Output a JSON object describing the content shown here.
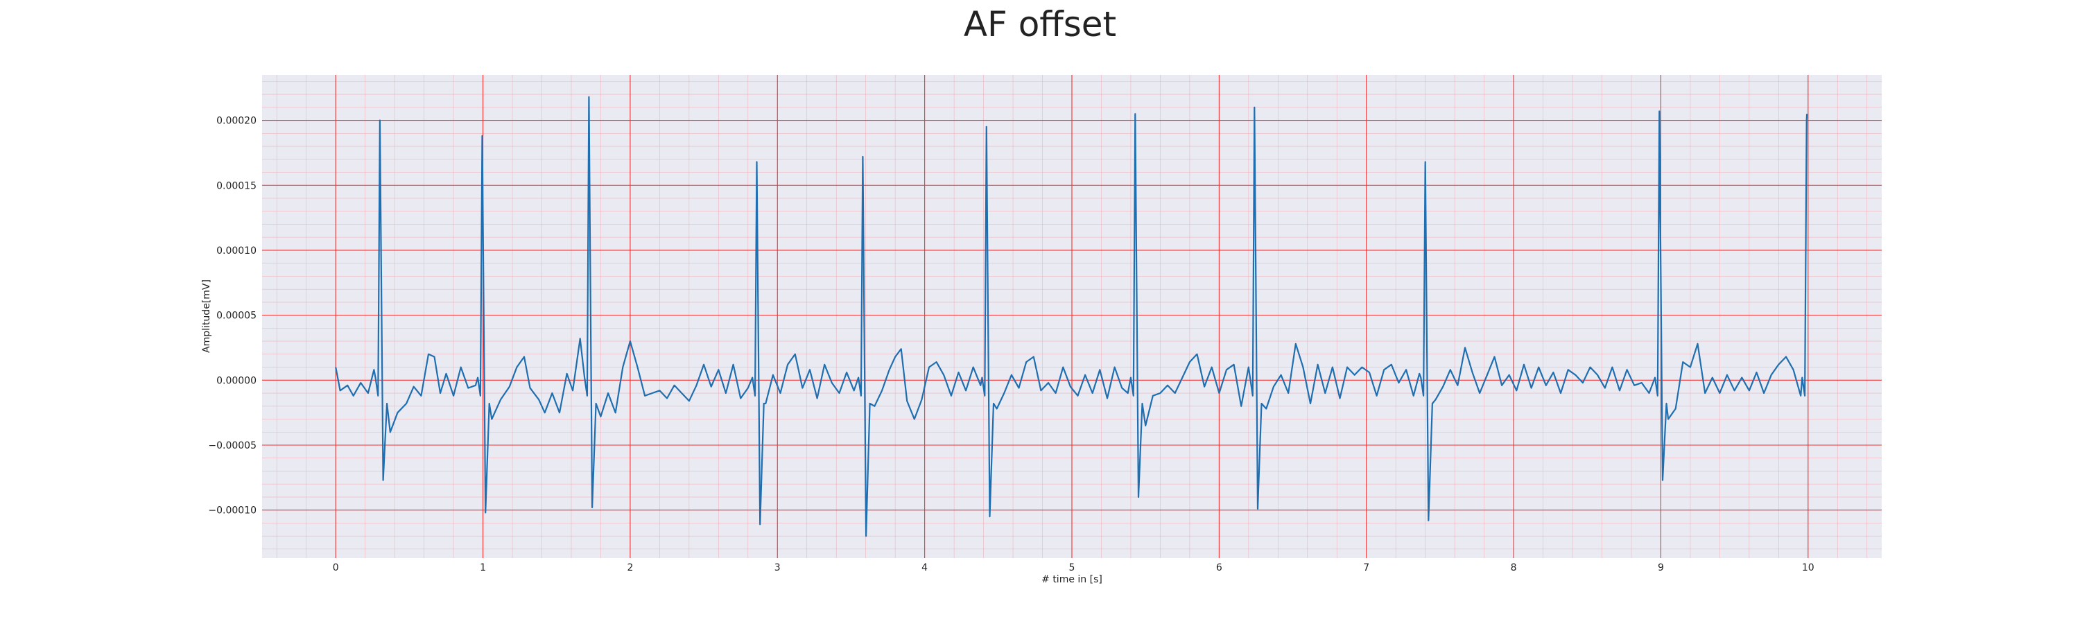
{
  "chart_data": {
    "type": "line",
    "title": "AF offset",
    "xlabel": "# time in [s]",
    "ylabel": "Amplitude[mV]",
    "xlim": [
      -0.5,
      10.5
    ],
    "ylim": [
      -0.000137,
      0.000235
    ],
    "x_ticks": [
      0,
      1,
      2,
      3,
      4,
      5,
      6,
      7,
      8,
      9,
      10
    ],
    "y_ticks": [
      -0.0001,
      -5e-05,
      0.0,
      5e-05,
      0.0001,
      0.00015,
      0.0002
    ],
    "x_tick_labels": [
      "0",
      "1",
      "2",
      "3",
      "4",
      "5",
      "6",
      "7",
      "8",
      "9",
      "10"
    ],
    "y_tick_labels": [
      "−0.00010",
      "−0.00005",
      "0.00000",
      "0.00005",
      "0.00010",
      "0.00015",
      "0.00020"
    ],
    "grid": true,
    "background": "#eaeaf2",
    "major_grid_color": "#ee3333",
    "minor_grid_color": "#f2a0a8",
    "line_color": "#1f6fb0",
    "beats": [
      {
        "t": 0.3,
        "r": 0.0002,
        "s": -7.7e-05
      },
      {
        "t": 0.995,
        "r": 0.000188,
        "s": -0.000102
      },
      {
        "t": 1.72,
        "r": 0.000218,
        "s": -9.8e-05
      },
      {
        "t": 2.86,
        "r": 0.000168,
        "s": -0.000111
      },
      {
        "t": 3.58,
        "r": 0.000172,
        "s": -0.00012
      },
      {
        "t": 4.42,
        "r": 0.000195,
        "s": -0.000105
      },
      {
        "t": 5.43,
        "r": 0.000205,
        "s": -9e-05
      },
      {
        "t": 6.24,
        "r": 0.00021,
        "s": -9.9e-05
      },
      {
        "t": 7.4,
        "r": 0.000168,
        "s": -0.000108
      },
      {
        "t": 8.99,
        "r": 0.000207,
        "s": -7.7e-05
      },
      {
        "t": 9.99,
        "r": 0.0002,
        "s": -3.5e-05
      }
    ],
    "baseline_points": [
      [
        0.0,
        1e-05
      ],
      [
        0.03,
        -8e-06
      ],
      [
        0.08,
        -4e-06
      ],
      [
        0.12,
        -1.2e-05
      ],
      [
        0.17,
        -2e-06
      ],
      [
        0.22,
        -1e-05
      ],
      [
        0.26,
        8e-06
      ],
      [
        0.37,
        -4e-05
      ],
      [
        0.42,
        -2.5e-05
      ],
      [
        0.48,
        -1.8e-05
      ],
      [
        0.53,
        -5e-06
      ],
      [
        0.58,
        -1.2e-05
      ],
      [
        0.63,
        2e-05
      ],
      [
        0.67,
        1.8e-05
      ],
      [
        0.71,
        -1e-05
      ],
      [
        0.75,
        5e-06
      ],
      [
        0.8,
        -1.2e-05
      ],
      [
        0.85,
        1e-05
      ],
      [
        0.9,
        -6e-06
      ],
      [
        0.95,
        -4e-06
      ],
      [
        1.06,
        -3e-05
      ],
      [
        1.12,
        -1.5e-05
      ],
      [
        1.18,
        -5e-06
      ],
      [
        1.23,
        1e-05
      ],
      [
        1.28,
        1.8e-05
      ],
      [
        1.32,
        -6e-06
      ],
      [
        1.38,
        -1.5e-05
      ],
      [
        1.42,
        -2.5e-05
      ],
      [
        1.47,
        -1e-05
      ],
      [
        1.52,
        -2.5e-05
      ],
      [
        1.57,
        5e-06
      ],
      [
        1.61,
        -8e-06
      ],
      [
        1.66,
        3.2e-05
      ],
      [
        1.8,
        -2.8e-05
      ],
      [
        1.85,
        -1e-05
      ],
      [
        1.9,
        -2.5e-05
      ],
      [
        1.95,
        1e-05
      ],
      [
        2.0,
        3e-05
      ],
      [
        2.05,
        1e-05
      ],
      [
        2.1,
        -1.2e-05
      ],
      [
        2.15,
        -1e-05
      ],
      [
        2.2,
        -8e-06
      ],
      [
        2.25,
        -1.4e-05
      ],
      [
        2.3,
        -4e-06
      ],
      [
        2.35,
        -1e-05
      ],
      [
        2.4,
        -1.6e-05
      ],
      [
        2.45,
        -4e-06
      ],
      [
        2.5,
        1.2e-05
      ],
      [
        2.55,
        -5e-06
      ],
      [
        2.6,
        8e-06
      ],
      [
        2.65,
        -1e-05
      ],
      [
        2.7,
        1.2e-05
      ],
      [
        2.75,
        -1.4e-05
      ],
      [
        2.8,
        -6e-06
      ],
      [
        2.92,
        -1.8e-05
      ],
      [
        2.97,
        4e-06
      ],
      [
        3.02,
        -1e-05
      ],
      [
        3.07,
        1.2e-05
      ],
      [
        3.12,
        2e-05
      ],
      [
        3.17,
        -6e-06
      ],
      [
        3.22,
        8e-06
      ],
      [
        3.27,
        -1.4e-05
      ],
      [
        3.32,
        1.2e-05
      ],
      [
        3.37,
        -2e-06
      ],
      [
        3.42,
        -1e-05
      ],
      [
        3.47,
        6e-06
      ],
      [
        3.52,
        -8e-06
      ],
      [
        3.66,
        -2e-05
      ],
      [
        3.71,
        -8e-06
      ],
      [
        3.76,
        8e-06
      ],
      [
        3.8,
        1.8e-05
      ],
      [
        3.84,
        2.4e-05
      ],
      [
        3.88,
        -1.6e-05
      ],
      [
        3.93,
        -3e-05
      ],
      [
        3.98,
        -1.5e-05
      ],
      [
        4.03,
        1e-05
      ],
      [
        4.08,
        1.4e-05
      ],
      [
        4.13,
        4e-06
      ],
      [
        4.18,
        -1.2e-05
      ],
      [
        4.23,
        6e-06
      ],
      [
        4.28,
        -8e-06
      ],
      [
        4.33,
        1e-05
      ],
      [
        4.38,
        -4e-06
      ],
      [
        4.49,
        -2.2e-05
      ],
      [
        4.54,
        -1e-05
      ],
      [
        4.59,
        4e-06
      ],
      [
        4.64,
        -6e-06
      ],
      [
        4.69,
        1.4e-05
      ],
      [
        4.74,
        1.8e-05
      ],
      [
        4.79,
        -8e-06
      ],
      [
        4.84,
        -2e-06
      ],
      [
        4.89,
        -1e-05
      ],
      [
        4.94,
        1e-05
      ],
      [
        4.99,
        -5e-06
      ],
      [
        5.04,
        -1.2e-05
      ],
      [
        5.09,
        4e-06
      ],
      [
        5.14,
        -1e-05
      ],
      [
        5.19,
        8e-06
      ],
      [
        5.24,
        -1.4e-05
      ],
      [
        5.29,
        1e-05
      ],
      [
        5.34,
        -6e-06
      ],
      [
        5.38,
        -1e-05
      ],
      [
        5.5,
        -3.5e-05
      ],
      [
        5.55,
        -1.2e-05
      ],
      [
        5.6,
        -1e-05
      ],
      [
        5.65,
        -4e-06
      ],
      [
        5.7,
        -1e-05
      ],
      [
        5.75,
        2e-06
      ],
      [
        5.8,
        1.4e-05
      ],
      [
        5.85,
        2e-05
      ],
      [
        5.9,
        -5e-06
      ],
      [
        5.95,
        1e-05
      ],
      [
        6.0,
        -1e-05
      ],
      [
        6.05,
        8e-06
      ],
      [
        6.1,
        1.2e-05
      ],
      [
        6.15,
        -2e-05
      ],
      [
        6.2,
        1e-05
      ],
      [
        6.32,
        -2.2e-05
      ],
      [
        6.37,
        -5e-06
      ],
      [
        6.42,
        4e-06
      ],
      [
        6.47,
        -1e-05
      ],
      [
        6.52,
        2.8e-05
      ],
      [
        6.57,
        1e-05
      ],
      [
        6.62,
        -1.8e-05
      ],
      [
        6.67,
        1.2e-05
      ],
      [
        6.72,
        -1e-05
      ],
      [
        6.77,
        1e-05
      ],
      [
        6.82,
        -1.4e-05
      ],
      [
        6.87,
        1e-05
      ],
      [
        6.92,
        4e-06
      ],
      [
        6.97,
        1e-05
      ],
      [
        7.02,
        6e-06
      ],
      [
        7.07,
        -1.2e-05
      ],
      [
        7.12,
        8e-06
      ],
      [
        7.17,
        1.2e-05
      ],
      [
        7.22,
        -2e-06
      ],
      [
        7.27,
        8e-06
      ],
      [
        7.32,
        -1.2e-05
      ],
      [
        7.36,
        5e-06
      ],
      [
        7.47,
        -1.5e-05
      ],
      [
        7.52,
        -5e-06
      ],
      [
        7.57,
        8e-06
      ],
      [
        7.62,
        -4e-06
      ],
      [
        7.67,
        2.5e-05
      ],
      [
        7.72,
        6e-06
      ],
      [
        7.77,
        -1e-05
      ],
      [
        7.82,
        4e-06
      ],
      [
        7.87,
        1.8e-05
      ],
      [
        7.92,
        -4e-06
      ],
      [
        7.97,
        4e-06
      ],
      [
        8.02,
        -8e-06
      ],
      [
        8.07,
        1.2e-05
      ],
      [
        8.12,
        -6e-06
      ],
      [
        8.17,
        1e-05
      ],
      [
        8.22,
        -4e-06
      ],
      [
        8.27,
        6e-06
      ],
      [
        8.32,
        -1e-05
      ],
      [
        8.37,
        8e-06
      ],
      [
        8.42,
        4e-06
      ],
      [
        8.47,
        -2e-06
      ],
      [
        8.52,
        1e-05
      ],
      [
        8.57,
        4e-06
      ],
      [
        8.62,
        -6e-06
      ],
      [
        8.67,
        1e-05
      ],
      [
        8.72,
        -8e-06
      ],
      [
        8.77,
        8e-06
      ],
      [
        8.82,
        -4e-06
      ],
      [
        8.87,
        -2e-06
      ],
      [
        8.92,
        -1e-05
      ],
      [
        9.05,
        -3e-05
      ],
      [
        9.1,
        -2.2e-05
      ],
      [
        9.15,
        1.4e-05
      ],
      [
        9.2,
        1e-05
      ],
      [
        9.25,
        2.8e-05
      ],
      [
        9.3,
        -1e-05
      ],
      [
        9.35,
        2e-06
      ],
      [
        9.4,
        -1e-05
      ],
      [
        9.45,
        4e-06
      ],
      [
        9.5,
        -8e-06
      ],
      [
        9.55,
        2e-06
      ],
      [
        9.6,
        -8e-06
      ],
      [
        9.65,
        6e-06
      ],
      [
        9.7,
        -1e-05
      ],
      [
        9.75,
        4e-06
      ],
      [
        9.8,
        1.2e-05
      ],
      [
        9.85,
        1.8e-05
      ],
      [
        9.9,
        8e-06
      ],
      [
        9.95,
        -1.2e-05
      ]
    ]
  }
}
